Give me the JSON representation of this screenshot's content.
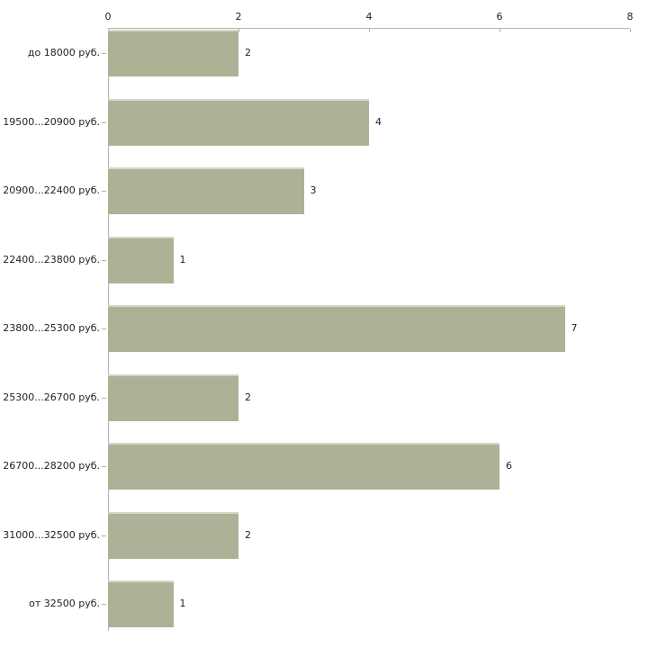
{
  "chart_data": {
    "type": "bar",
    "orientation": "horizontal",
    "categories": [
      "до 18000 руб.",
      "19500...20900 руб.",
      "20900...22400 руб.",
      "22400...23800 руб.",
      "23800...25300 руб.",
      "25300...26700 руб.",
      "26700...28200 руб.",
      "31000...32500 руб.",
      "от 32500 руб."
    ],
    "values": [
      2,
      4,
      3,
      1,
      7,
      2,
      6,
      2,
      1
    ],
    "value_labels_shown": true,
    "x_ticks": [
      0,
      2,
      4,
      6,
      8
    ],
    "xlim": [
      0,
      8
    ],
    "x_axis_position": "top",
    "grid": "off",
    "legend": "none",
    "colors": {
      "bar_fill": "#acb296",
      "bar_top_highlight": "#d3d6c8",
      "axis_line": "#b3b3b3",
      "tick_mark": "#b5b489",
      "text": "#222222",
      "background": "#ffffff"
    }
  }
}
